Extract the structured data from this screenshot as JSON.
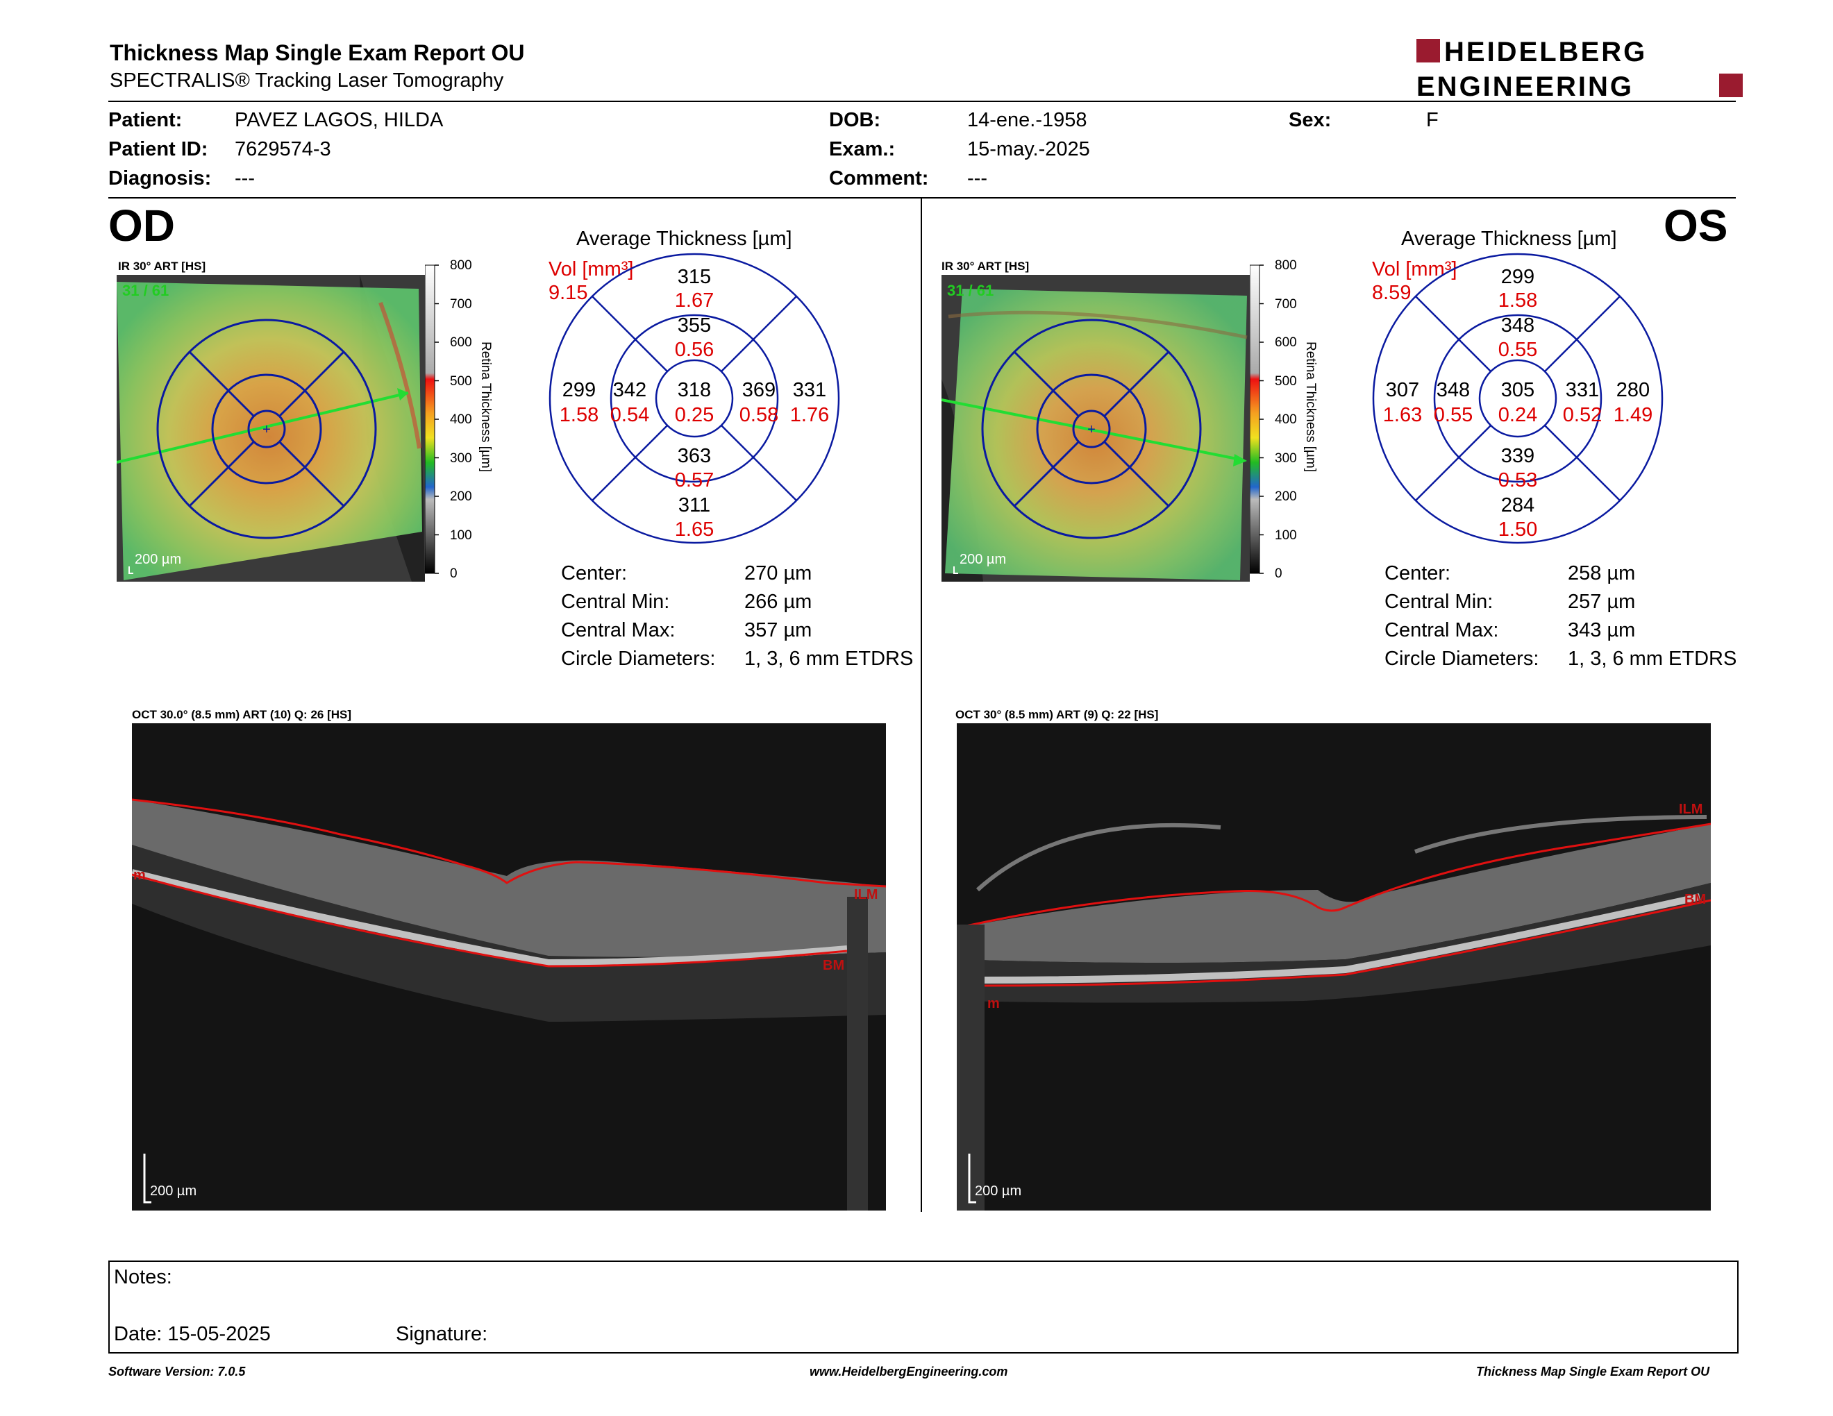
{
  "report": {
    "title": "Thickness Map Single Exam Report OU",
    "subtitle": "SPECTRALIS® Tracking Laser Tomography",
    "brand_line1": "HEIDELBERG",
    "brand_line2": "ENGINEERING",
    "brand_color": "#9a1b2f"
  },
  "patient": {
    "patient_label": "Patient:",
    "patient_value": "PAVEZ LAGOS, HILDA",
    "id_label": "Patient ID:",
    "id_value": "7629574-3",
    "diag_label": "Diagnosis:",
    "diag_value": "---",
    "dob_label": "DOB:",
    "dob_value": "14-ene.-1958",
    "exam_label": "Exam.:",
    "exam_value": "15-may.-2025",
    "comment_label": "Comment:",
    "comment_value": "---",
    "sex_label": "Sex:",
    "sex_value": "F"
  },
  "od": {
    "eye": "OD",
    "ir_caption": "IR 30° ART [HS]",
    "frame_counter": "31 / 61",
    "scale": "200 µm",
    "colorbar_title": "Retina  Thickness [µm]",
    "colorbar_ticks": [
      "800",
      "700",
      "600",
      "500",
      "400",
      "300",
      "200",
      "100",
      "0"
    ],
    "avg_title": "Average Thickness [µm]",
    "vol_label": "Vol [mm³]",
    "vol_value": "9.15",
    "grid": {
      "sup_out_t": "315",
      "sup_out_v": "1.67",
      "sup_in_t": "355",
      "sup_in_v": "0.56",
      "temp_out_t": "299",
      "temp_out_v": "1.58",
      "temp_in_t": "342",
      "temp_in_v": "0.54",
      "center_t": "318",
      "center_v": "0.25",
      "nas_in_t": "369",
      "nas_in_v": "0.58",
      "nas_out_t": "331",
      "nas_out_v": "1.76",
      "inf_in_t": "363",
      "inf_in_v": "0.57",
      "inf_out_t": "311",
      "inf_out_v": "1.65"
    },
    "stats": {
      "center_label": "Center:",
      "center_value": "270 µm",
      "min_label": "Central Min:",
      "min_value": "266 µm",
      "max_label": "Central Max:",
      "max_value": "357 µm",
      "diam_label": "Circle Diameters:",
      "diam_value": "1, 3, 6 mm ETDRS"
    },
    "oct_caption": "OCT 30.0° (8.5 mm) ART (10) Q: 26 [HS]",
    "oct_scale": "200 µm",
    "ilm": "ILM",
    "bm": "BM",
    "rpe": "m"
  },
  "os": {
    "eye": "OS",
    "ir_caption": "IR 30° ART [HS]",
    "frame_counter": "31 / 61",
    "scale": "200 µm",
    "colorbar_title": "Retina  Thickness [µm]",
    "colorbar_ticks": [
      "800",
      "700",
      "600",
      "500",
      "400",
      "300",
      "200",
      "100",
      "0"
    ],
    "avg_title": "Average Thickness [µm]",
    "vol_label": "Vol [mm³]",
    "vol_value": "8.59",
    "grid": {
      "sup_out_t": "299",
      "sup_out_v": "1.58",
      "sup_in_t": "348",
      "sup_in_v": "0.55",
      "temp_out_t": "307",
      "temp_out_v": "1.63",
      "temp_in_t": "348",
      "temp_in_v": "0.55",
      "center_t": "305",
      "center_v": "0.24",
      "nas_in_t": "331",
      "nas_in_v": "0.52",
      "nas_out_t": "280",
      "nas_out_v": "1.49",
      "inf_in_t": "339",
      "inf_in_v": "0.53",
      "inf_out_t": "284",
      "inf_out_v": "1.50"
    },
    "stats": {
      "center_label": "Center:",
      "center_value": "258 µm",
      "min_label": "Central Min:",
      "min_value": "257 µm",
      "max_label": "Central Max:",
      "max_value": "343 µm",
      "diam_label": "Circle Diameters:",
      "diam_value": "1, 3, 6 mm ETDRS"
    },
    "oct_caption": "OCT 30° (8.5 mm) ART (9) Q: 22 [HS]",
    "oct_scale": "200 µm",
    "ilm": "ILM",
    "bm": "BM",
    "rpe": "m"
  },
  "notes": {
    "label": "Notes:",
    "date_label": "Date: 15-05-2025",
    "signature_label": "Signature:"
  },
  "footer": {
    "software": "Software Version: 7.0.5",
    "website": "www.HeidelbergEngineering.com",
    "report_name": "Thickness Map Single Exam Report OU"
  }
}
